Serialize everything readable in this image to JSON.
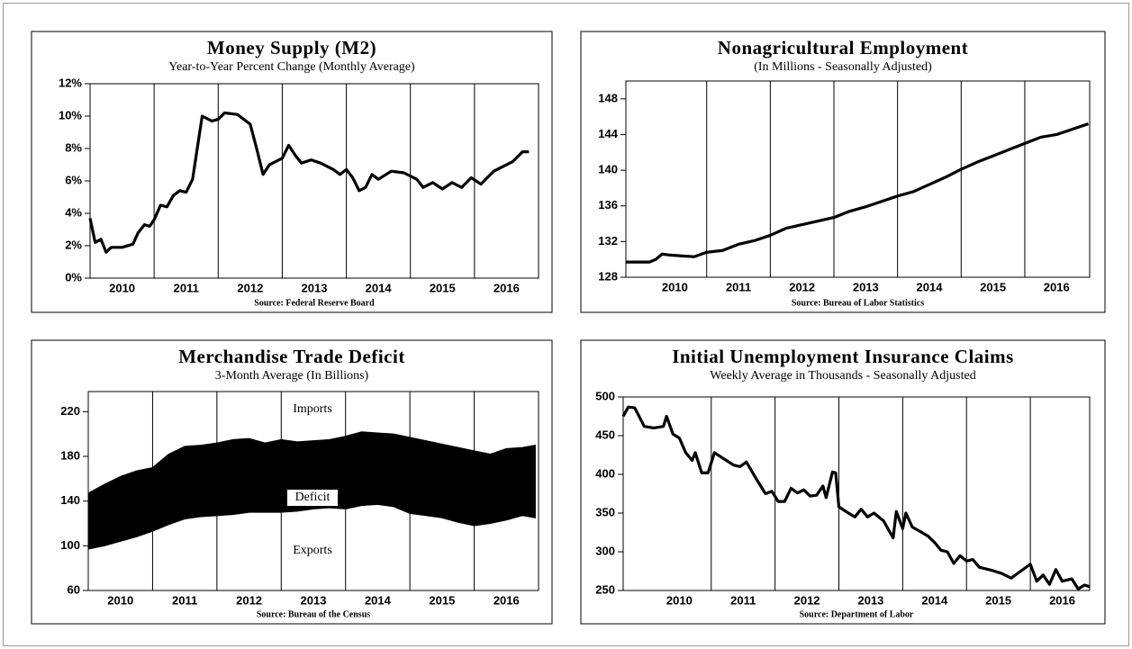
{
  "chart_data": [
    {
      "type": "line",
      "title": "Money Supply (M2)",
      "subtitle": "Year-to-Year Percent Change (Monthly Average)",
      "source": "Source: Federal Reserve Board",
      "xlim": [
        2010,
        2017
      ],
      "ylim": [
        0,
        12
      ],
      "yticks": [
        {
          "value": 0,
          "label": "0%"
        },
        {
          "value": 2,
          "label": "2%"
        },
        {
          "value": 4,
          "label": "4%"
        },
        {
          "value": 6,
          "label": "6%"
        },
        {
          "value": 8,
          "label": "8%"
        },
        {
          "value": 10,
          "label": "10%"
        },
        {
          "value": 12,
          "label": "12%"
        }
      ],
      "xticks": [
        {
          "value": 2010.5,
          "label": "2010"
        },
        {
          "value": 2011.5,
          "label": "2011"
        },
        {
          "value": 2012.5,
          "label": "2012"
        },
        {
          "value": 2013.5,
          "label": "2013"
        },
        {
          "value": 2014.5,
          "label": "2014"
        },
        {
          "value": 2015.5,
          "label": "2015"
        },
        {
          "value": 2016.5,
          "label": "2016"
        }
      ],
      "xgrid": [
        2011,
        2012,
        2013,
        2014,
        2015,
        2016
      ],
      "x": [
        2010.0,
        2010.08,
        2010.17,
        2010.25,
        2010.33,
        2010.5,
        2010.67,
        2010.75,
        2010.85,
        2010.93,
        2011.0,
        2011.1,
        2011.2,
        2011.3,
        2011.4,
        2011.5,
        2011.6,
        2011.75,
        2011.9,
        2012.0,
        2012.1,
        2012.3,
        2012.5,
        2012.6,
        2012.7,
        2012.8,
        2013.0,
        2013.1,
        2013.2,
        2013.3,
        2013.45,
        2013.6,
        2013.8,
        2013.9,
        2014.0,
        2014.1,
        2014.2,
        2014.3,
        2014.4,
        2014.5,
        2014.7,
        2014.9,
        2015.1,
        2015.2,
        2015.35,
        2015.5,
        2015.65,
        2015.8,
        2015.95,
        2016.1,
        2016.2,
        2016.3,
        2016.45,
        2016.6,
        2016.75,
        2016.85
      ],
      "series": [
        {
          "color": "#000000",
          "values": [
            3.7,
            2.2,
            2.4,
            1.6,
            1.9,
            1.9,
            2.1,
            2.8,
            3.3,
            3.2,
            3.6,
            4.5,
            4.4,
            5.1,
            5.4,
            5.3,
            6.1,
            10.0,
            9.7,
            9.8,
            10.2,
            10.1,
            9.5,
            8.0,
            6.4,
            7.0,
            7.4,
            8.2,
            7.6,
            7.1,
            7.3,
            7.1,
            6.7,
            6.4,
            6.7,
            6.2,
            5.4,
            5.6,
            6.4,
            6.1,
            6.6,
            6.5,
            6.1,
            5.6,
            5.9,
            5.5,
            5.9,
            5.6,
            6.2,
            5.8,
            6.2,
            6.6,
            6.9,
            7.2,
            7.8,
            7.8
          ]
        }
      ]
    },
    {
      "type": "line",
      "title": "Nonagricultural Employment",
      "subtitle": "(In Millions - Seasonally Adjusted)",
      "source": "Source: Bureau of Labor Statistics",
      "xlim": [
        2009.73,
        2017.02
      ],
      "ylim": [
        128,
        150
      ],
      "yticks": [
        128,
        132,
        136,
        140,
        144,
        148
      ],
      "xticks": [
        {
          "value": 2010.5,
          "label": "2010"
        },
        {
          "value": 2011.5,
          "label": "2011"
        },
        {
          "value": 2012.5,
          "label": "2012"
        },
        {
          "value": 2013.5,
          "label": "2013"
        },
        {
          "value": 2014.5,
          "label": "2014"
        },
        {
          "value": 2015.5,
          "label": "2015"
        },
        {
          "value": 2016.5,
          "label": "2016"
        }
      ],
      "xgrid": [
        2011,
        2012,
        2013,
        2014,
        2015,
        2016
      ],
      "x": [
        2009.73,
        2009.9,
        2010.1,
        2010.2,
        2010.3,
        2010.4,
        2010.6,
        2010.8,
        2011.0,
        2011.25,
        2011.5,
        2011.75,
        2012.0,
        2012.25,
        2012.5,
        2012.75,
        2013.0,
        2013.25,
        2013.5,
        2013.75,
        2014.0,
        2014.25,
        2014.5,
        2014.75,
        2015.0,
        2015.25,
        2015.5,
        2015.75,
        2016.0,
        2016.25,
        2016.5,
        2016.75,
        2017.0
      ],
      "series": [
        {
          "color": "#000000",
          "values": [
            129.7,
            129.7,
            129.7,
            130.0,
            130.6,
            130.5,
            130.4,
            130.3,
            130.8,
            131.0,
            131.7,
            132.1,
            132.7,
            133.5,
            133.9,
            134.3,
            134.7,
            135.4,
            135.9,
            136.5,
            137.1,
            137.6,
            138.4,
            139.2,
            140.1,
            140.9,
            141.6,
            142.3,
            143.0,
            143.7,
            144.0,
            144.6,
            145.2
          ]
        }
      ]
    },
    {
      "type": "area",
      "title": "Merchandise Trade Deficit",
      "subtitle": "3-Month Average (In Billions)",
      "source": "Source: Bureau of the Census",
      "xlim": [
        2010,
        2017
      ],
      "ylim": [
        60,
        238
      ],
      "yticks": [
        60,
        100,
        140,
        180,
        220
      ],
      "xticks": [
        {
          "value": 2010.5,
          "label": "2010"
        },
        {
          "value": 2011.5,
          "label": "2011"
        },
        {
          "value": 2012.5,
          "label": "2012"
        },
        {
          "value": 2013.5,
          "label": "2013"
        },
        {
          "value": 2014.5,
          "label": "2014"
        },
        {
          "value": 2015.5,
          "label": "2015"
        },
        {
          "value": 2016.5,
          "label": "2016"
        }
      ],
      "xgrid": [
        2011,
        2012,
        2013,
        2014,
        2015,
        2016
      ],
      "annotation": "Deficit",
      "x": [
        2010.0,
        2010.25,
        2010.5,
        2010.75,
        2011.0,
        2011.25,
        2011.5,
        2011.75,
        2012.0,
        2012.25,
        2012.5,
        2012.75,
        2013.0,
        2013.25,
        2013.5,
        2013.75,
        2014.0,
        2014.25,
        2014.5,
        2014.75,
        2015.0,
        2015.25,
        2015.5,
        2015.75,
        2016.0,
        2016.25,
        2016.5,
        2016.75,
        2016.95
      ],
      "series": [
        {
          "name": "Imports",
          "color": "#000000",
          "values": [
            147,
            155,
            162,
            167,
            170,
            182,
            189,
            190,
            192,
            195,
            196,
            192,
            195,
            193,
            194,
            195,
            198,
            202,
            201,
            200,
            197,
            194,
            191,
            188,
            185,
            182,
            187,
            188,
            190
          ]
        },
        {
          "name": "Exports",
          "color": "#000000",
          "values": [
            97,
            100,
            104,
            108,
            113,
            119,
            124,
            126,
            127,
            128,
            130,
            130,
            130,
            131,
            133,
            134,
            133,
            136,
            137,
            135,
            129,
            127,
            125,
            121,
            118,
            120,
            123,
            127,
            125
          ]
        }
      ]
    },
    {
      "type": "line",
      "title": "Initial Unemployment Insurance Claims",
      "subtitle": "Weekly Average in Thousands - Seasonally Adjusted",
      "source": "Source: Department of Labor",
      "xlim": [
        2009.62,
        2016.93
      ],
      "ylim": [
        250,
        500
      ],
      "yticks": [
        250,
        300,
        350,
        400,
        450,
        500
      ],
      "xticks": [
        {
          "value": 2010.5,
          "label": "2010"
        },
        {
          "value": 2011.5,
          "label": "2011"
        },
        {
          "value": 2012.5,
          "label": "2012"
        },
        {
          "value": 2013.5,
          "label": "2013"
        },
        {
          "value": 2014.5,
          "label": "2014"
        },
        {
          "value": 2015.5,
          "label": "2015"
        },
        {
          "value": 2016.5,
          "label": "2016"
        }
      ],
      "xgrid": [
        2011,
        2012,
        2013,
        2014,
        2015,
        2016
      ],
      "x": [
        2009.62,
        2009.7,
        2009.8,
        2009.95,
        2010.1,
        2010.25,
        2010.3,
        2010.4,
        2010.5,
        2010.6,
        2010.7,
        2010.75,
        2010.85,
        2010.95,
        2011.05,
        2011.2,
        2011.35,
        2011.45,
        2011.55,
        2011.7,
        2011.85,
        2011.95,
        2012.05,
        2012.15,
        2012.25,
        2012.35,
        2012.45,
        2012.55,
        2012.65,
        2012.75,
        2012.8,
        2012.9,
        2012.95,
        2013.0,
        2013.15,
        2013.25,
        2013.35,
        2013.45,
        2013.55,
        2013.7,
        2013.85,
        2013.9,
        2014.0,
        2014.05,
        2014.15,
        2014.3,
        2014.4,
        2014.5,
        2014.6,
        2014.7,
        2014.8,
        2014.9,
        2015.0,
        2015.1,
        2015.2,
        2015.4,
        2015.55,
        2015.7,
        2015.85,
        2016.0,
        2016.1,
        2016.2,
        2016.3,
        2016.4,
        2016.5,
        2016.65,
        2016.75,
        2016.85,
        2016.93
      ],
      "series": [
        {
          "color": "#000000",
          "values": [
            475,
            487,
            486,
            462,
            460,
            462,
            475,
            452,
            447,
            428,
            418,
            428,
            402,
            402,
            428,
            420,
            412,
            410,
            416,
            395,
            375,
            378,
            365,
            365,
            382,
            376,
            380,
            372,
            373,
            385,
            370,
            403,
            402,
            358,
            350,
            345,
            355,
            345,
            350,
            340,
            318,
            352,
            330,
            350,
            332,
            325,
            320,
            312,
            302,
            300,
            285,
            295,
            288,
            290,
            280,
            276,
            272,
            266,
            275,
            284,
            262,
            270,
            258,
            277,
            262,
            265,
            252,
            257,
            255
          ]
        }
      ]
    }
  ]
}
